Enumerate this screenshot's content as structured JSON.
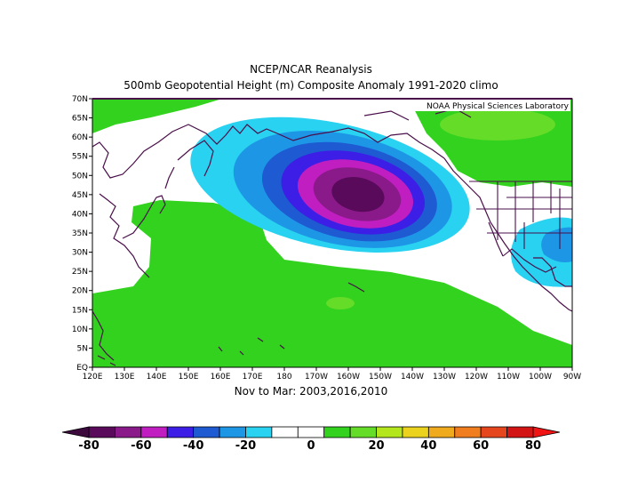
{
  "header": {
    "title_line1": "NCEP/NCAR Reanalysis",
    "title_line2": "500mb Geopotential Height (m) Composite Anomaly 1991-2020 climo"
  },
  "map": {
    "watermark": "NOAA Physical Sciences Laboratory",
    "subtitle": "Nov to Mar: 2003,2016,2010",
    "lat_labels": [
      "70N",
      "65N",
      "60N",
      "55N",
      "50N",
      "45N",
      "40N",
      "35N",
      "30N",
      "25N",
      "20N",
      "15N",
      "10N",
      "5N",
      "EQ"
    ],
    "lon_labels": [
      "120E",
      "130E",
      "140E",
      "150E",
      "160E",
      "170E",
      "180",
      "170W",
      "160W",
      "150W",
      "140W",
      "130W",
      "120W",
      "110W",
      "100W",
      "90W"
    ]
  },
  "colorbar": {
    "labels": [
      "-80",
      "-60",
      "-40",
      "-20",
      "0",
      "20",
      "40",
      "60",
      "80"
    ],
    "colors": [
      "#5a0a5a",
      "#8a1a8a",
      "#c01ec0",
      "#3c1ee6",
      "#1e5ad2",
      "#1e96e6",
      "#28d2f0",
      "#ffffff",
      "#ffffff",
      "#32d21e",
      "#64dc28",
      "#b4e61e",
      "#ebd21e",
      "#f0aa1e",
      "#f07d1e",
      "#e6461e",
      "#d21414"
    ]
  }
}
